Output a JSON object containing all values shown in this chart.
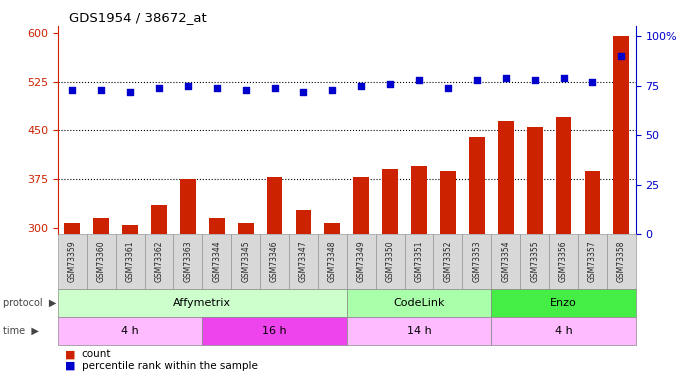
{
  "title": "GDS1954 / 38672_at",
  "samples": [
    "GSM73359",
    "GSM73360",
    "GSM73361",
    "GSM73362",
    "GSM73363",
    "GSM73344",
    "GSM73345",
    "GSM73346",
    "GSM73347",
    "GSM73348",
    "GSM73349",
    "GSM73350",
    "GSM73351",
    "GSM73352",
    "GSM73353",
    "GSM73354",
    "GSM73355",
    "GSM73356",
    "GSM73357",
    "GSM73358"
  ],
  "counts": [
    308,
    315,
    305,
    335,
    375,
    315,
    308,
    378,
    328,
    308,
    378,
    390,
    395,
    388,
    440,
    465,
    455,
    470,
    388,
    595
  ],
  "percentile_ranks": [
    73,
    73,
    72,
    74,
    75,
    74,
    73,
    74,
    72,
    73,
    75,
    76,
    78,
    74,
    78,
    79,
    78,
    79,
    77,
    90
  ],
  "bar_color": "#cc2200",
  "dot_color": "#0000cc",
  "ylim_left": [
    290,
    610
  ],
  "ylim_right": [
    0,
    105
  ],
  "yticks_left": [
    300,
    375,
    450,
    525,
    600
  ],
  "yticks_right": [
    0,
    25,
    50,
    75,
    100
  ],
  "hlines": [
    375,
    450,
    525
  ],
  "protocol_groups": [
    {
      "label": "Affymetrix",
      "start": 0,
      "end": 9,
      "color": "#ccffcc"
    },
    {
      "label": "CodeLink",
      "start": 10,
      "end": 14,
      "color": "#aaffaa"
    },
    {
      "label": "Enzo",
      "start": 15,
      "end": 19,
      "color": "#44ee44"
    }
  ],
  "time_groups": [
    {
      "label": "4 h",
      "start": 0,
      "end": 4,
      "color": "#ffbbff"
    },
    {
      "label": "16 h",
      "start": 5,
      "end": 9,
      "color": "#ee44ee"
    },
    {
      "label": "14 h",
      "start": 10,
      "end": 14,
      "color": "#ffbbff"
    },
    {
      "label": "4 h",
      "start": 15,
      "end": 19,
      "color": "#ffbbff"
    }
  ],
  "legend_count_label": "count",
  "legend_pct_label": "percentile rank within the sample",
  "bar_width": 0.55,
  "dot_size": 22,
  "tick_color_left": "#cc2200",
  "tick_color_right": "#0000cc",
  "protocol_label": "protocol",
  "time_label": "time",
  "background_color": "#ffffff"
}
